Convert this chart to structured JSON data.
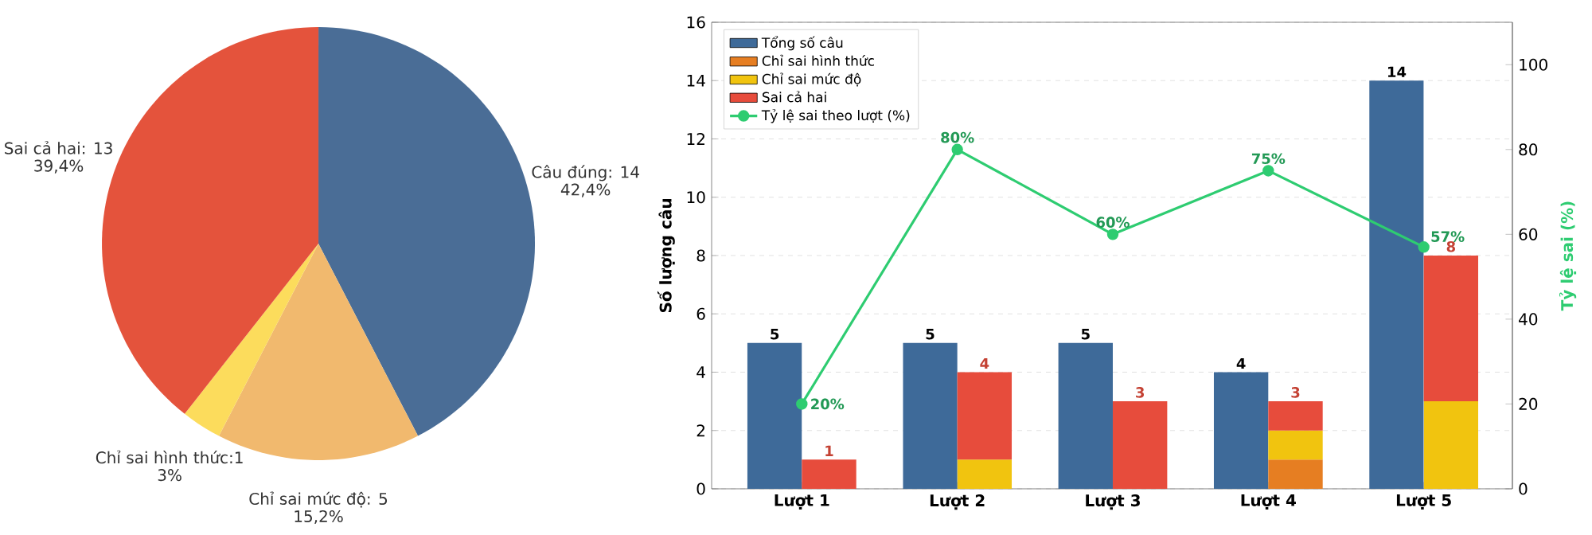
{
  "chart_data": [
    {
      "type": "pie",
      "categories": [
        "Câu đúng: 14",
        "Chỉ sai mức độ: 5",
        "Chỉ sai hình thức:1",
        "Sai cả hai: 13"
      ],
      "values": [
        42.4,
        15.2,
        3,
        39.4
      ],
      "colors": [
        "#4a6d96",
        "#f1b96e",
        "#fcdc5c",
        "#e4533c"
      ],
      "value_labels": [
        "42,4%",
        "15,2%",
        "3%",
        "39,4%"
      ]
    },
    {
      "type": "bar",
      "categories": [
        "Lượt 1",
        "Lượt 2",
        "Lượt 3",
        "Lượt 4",
        "Lượt 5"
      ],
      "ylabel": "Số lượng câu",
      "y2label": "Tỷ lệ sai (%)",
      "ylim": [
        0,
        16
      ],
      "yticks": [
        0,
        2,
        4,
        6,
        8,
        10,
        12,
        14,
        16
      ],
      "y2lim": [
        0,
        110
      ],
      "y2ticks": [
        0,
        20,
        40,
        60,
        80,
        100
      ],
      "grid": "y",
      "legend": "top left",
      "annotations": [
        {
          "text": "1",
          "x": "Lượt 1",
          "y": 1
        },
        {
          "text": "4",
          "x": "Lượt 2",
          "y": 4
        },
        {
          "text": "3",
          "x": "Lượt 3",
          "y": 3
        },
        {
          "text": "3",
          "x": "Lượt 4",
          "y": 3
        },
        {
          "text": "8",
          "x": "Lượt 5",
          "y": 8
        }
      ],
      "series": [
        {
          "name": "Tổng số câu",
          "color": "#3e6a99",
          "values": [
            5,
            5,
            5,
            4,
            14
          ],
          "value_labels": [
            "5",
            "5",
            "5",
            "4",
            "14"
          ]
        },
        {
          "name": "Chỉ sai hình thức",
          "color": "#e67e22",
          "base": [
            null,
            null,
            null,
            0,
            null
          ],
          "values": [
            0,
            0,
            0,
            1,
            0
          ]
        },
        {
          "name": "Chỉ sai mức độ",
          "color": "#f1c40f",
          "base": [
            null,
            0,
            null,
            1,
            0
          ],
          "values": [
            0,
            1,
            0,
            1,
            3
          ]
        },
        {
          "name": "Sai cả hai",
          "color": "#e74c3c",
          "base": [
            0,
            1,
            0,
            2,
            3
          ],
          "values": [
            1,
            3,
            3,
            1,
            5
          ]
        },
        {
          "name": "Tỷ lệ sai theo lượt (%)",
          "type": "line",
          "axis": "y2",
          "color": "#2ecc71",
          "marker": "circle",
          "line_style": "solid",
          "values": [
            20,
            80,
            60,
            75,
            57
          ],
          "value_labels": [
            "20%",
            "80%",
            "60%",
            "75%",
            "57%"
          ]
        }
      ]
    }
  ]
}
